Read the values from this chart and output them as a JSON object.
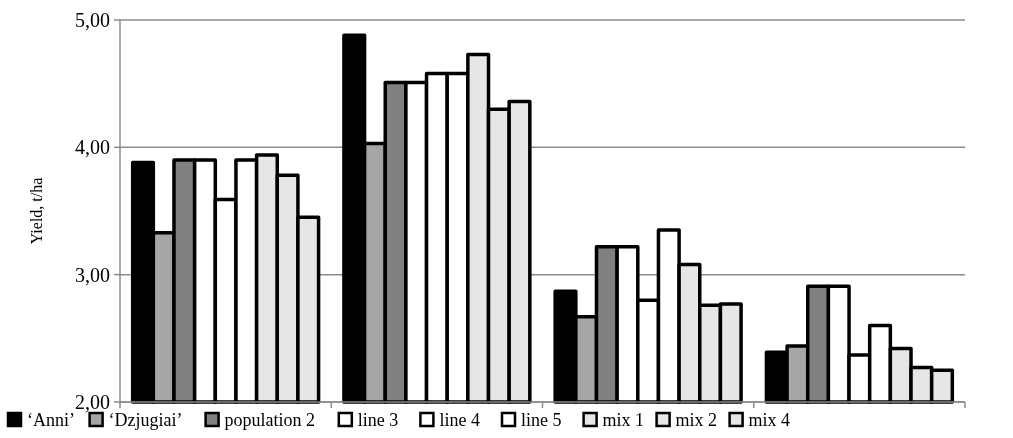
{
  "chart_data": {
    "type": "bar",
    "ylabel": "Yield, t/ha",
    "categories": [
      null,
      null,
      null,
      null
    ],
    "ylim": [
      2,
      5
    ],
    "yticks": [
      {
        "value": 2,
        "label": "2,00"
      },
      {
        "value": 3,
        "label": "3,00"
      },
      {
        "value": 4,
        "label": "4,00"
      },
      {
        "value": 5,
        "label": "5,00"
      }
    ],
    "grid": "y",
    "legend": "bottom",
    "series": [
      {
        "name": "‘Anni’",
        "color": "#000000",
        "values": [
          3.88,
          4.88,
          2.87,
          2.39
        ]
      },
      {
        "name": "‘Dzjugiai’",
        "color": "#a6a6a6",
        "values": [
          3.33,
          4.03,
          2.67,
          2.44
        ]
      },
      {
        "name": "population 2",
        "color": "#808080",
        "values": [
          3.9,
          4.51,
          3.22,
          2.91
        ]
      },
      {
        "name": "line 3",
        "color": "#ffffff",
        "values": [
          3.9,
          4.51,
          3.22,
          2.91
        ]
      },
      {
        "name": "line 4",
        "color": "#ffffff",
        "values": [
          3.59,
          4.58,
          2.8,
          2.37
        ]
      },
      {
        "name": "line 5",
        "color": "#ffffff",
        "values": [
          3.9,
          4.58,
          3.35,
          2.6
        ]
      },
      {
        "name": "mix 1",
        "color": "#e6e6e6",
        "values": [
          3.94,
          4.73,
          3.08,
          2.42
        ]
      },
      {
        "name": "mix 2",
        "color": "#e6e6e6",
        "values": [
          3.78,
          4.3,
          2.76,
          2.27
        ]
      },
      {
        "name": "mix 4",
        "color": "#e6e6e6",
        "values": [
          3.45,
          4.36,
          2.77,
          2.25
        ]
      }
    ]
  }
}
